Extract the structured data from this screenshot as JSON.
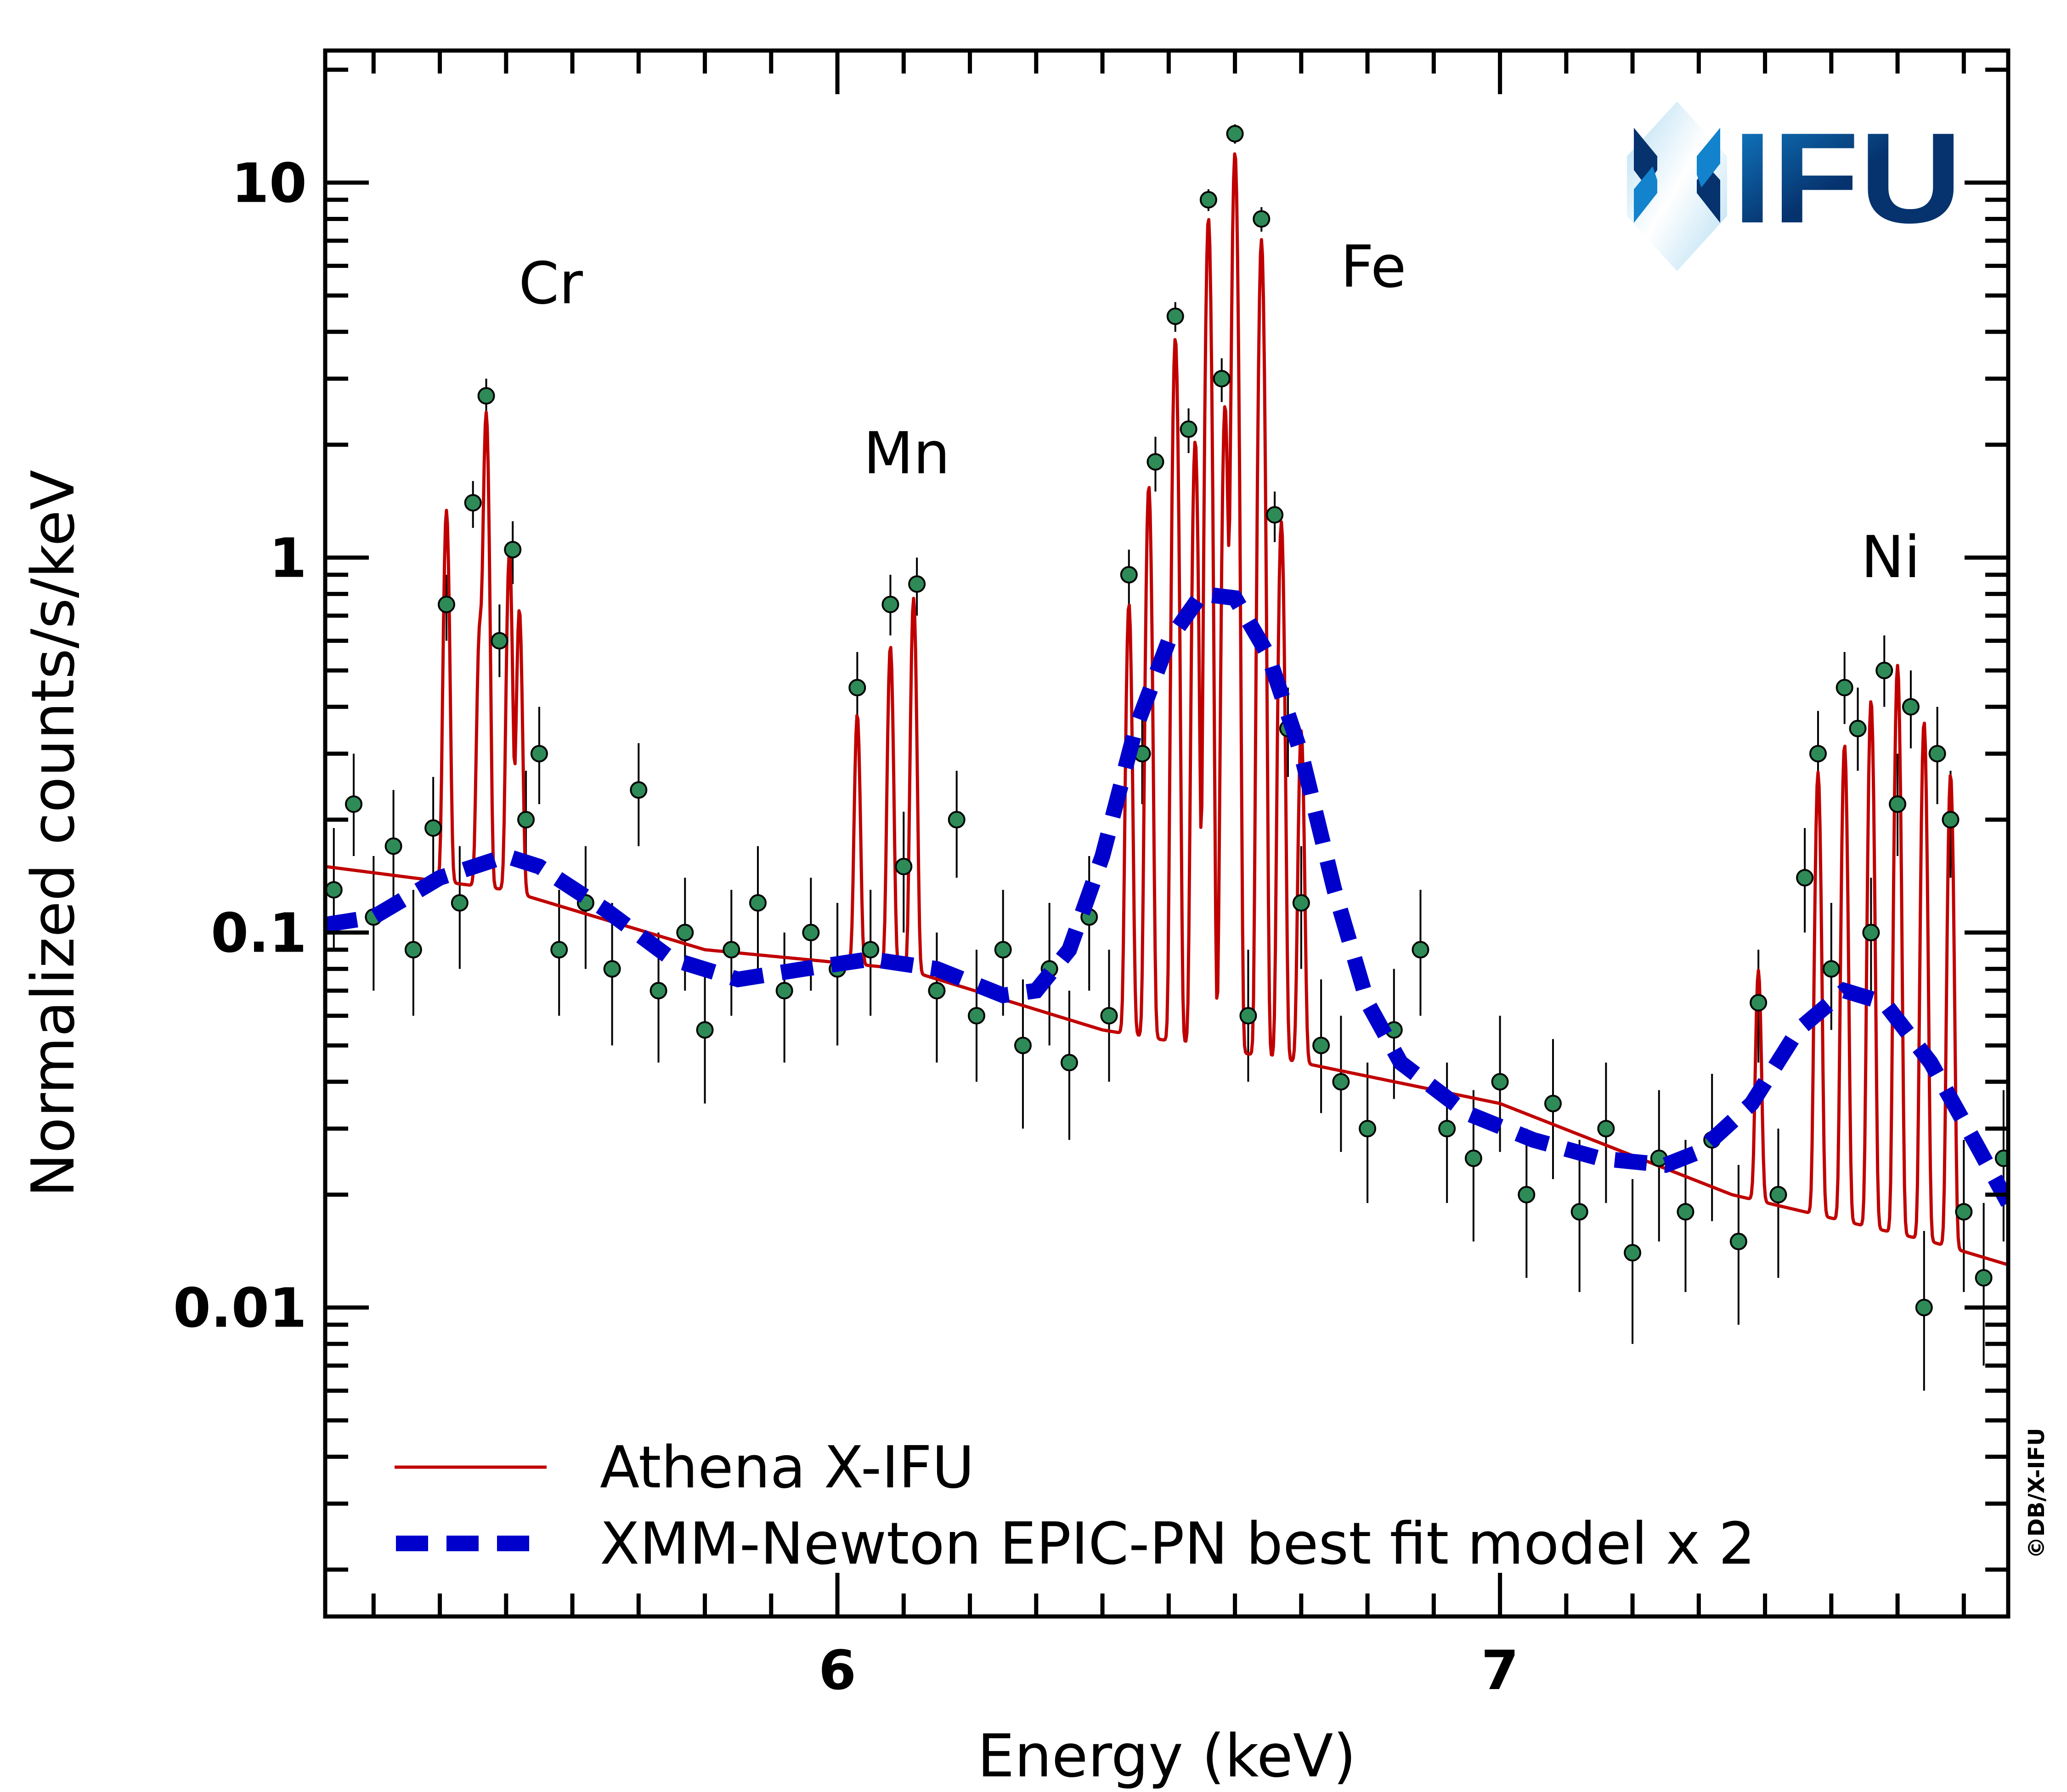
{
  "chart_data": {
    "type": "scatter",
    "xlabel": "Energy (keV)",
    "ylabel": "Normalized counts/s/keV",
    "xlim": [
      5.227,
      7.767
    ],
    "ylim": [
      0.0015,
      22.5
    ],
    "yscale": "log",
    "xticks": [
      {
        "value": 6,
        "label": "6"
      },
      {
        "value": 7,
        "label": "7"
      }
    ],
    "yticks": [
      {
        "value": 0.01,
        "label": "0.01"
      },
      {
        "value": 0.1,
        "label": "0.1"
      },
      {
        "value": 1,
        "label": "1"
      },
      {
        "value": 10,
        "label": "10"
      }
    ],
    "grid": false,
    "legend_placement": "bottom-left",
    "annotations": [
      {
        "text": "Cr",
        "x": 5.5,
        "y": 5.2
      },
      {
        "text": "Mn",
        "x": 6.11,
        "y": 1.9
      },
      {
        "text": "Fe",
        "x": 6.81,
        "y": 5.8
      },
      {
        "text": "Ni",
        "x": 7.59,
        "y": 1.0
      }
    ],
    "series": [
      {
        "name": "Athena X-IFU",
        "kind": "model-line",
        "color": "#c00000",
        "continuum": [
          [
            5.227,
            0.15
          ],
          [
            5.5,
            0.13
          ],
          [
            5.8,
            0.09
          ],
          [
            6.1,
            0.08
          ],
          [
            6.4,
            0.055
          ],
          [
            6.7,
            0.045
          ],
          [
            7.0,
            0.035
          ],
          [
            7.35,
            0.02
          ],
          [
            7.65,
            0.015
          ],
          [
            7.767,
            0.013
          ]
        ],
        "lines": [
          {
            "energy": 5.41,
            "peak": 1.2
          },
          {
            "energy": 5.46,
            "peak": 0.5
          },
          {
            "energy": 5.47,
            "peak": 2.3
          },
          {
            "energy": 5.505,
            "peak": 0.9
          },
          {
            "energy": 5.52,
            "peak": 0.6
          },
          {
            "energy": 6.03,
            "peak": 0.3
          },
          {
            "energy": 6.08,
            "peak": 0.5
          },
          {
            "energy": 6.115,
            "peak": 0.7
          },
          {
            "energy": 6.44,
            "peak": 0.7
          },
          {
            "energy": 6.47,
            "peak": 1.5
          },
          {
            "energy": 6.51,
            "peak": 3.8
          },
          {
            "energy": 6.54,
            "peak": 2.0
          },
          {
            "energy": 6.56,
            "peak": 8.0
          },
          {
            "energy": 6.585,
            "peak": 2.5
          },
          {
            "energy": 6.6,
            "peak": 12.0
          },
          {
            "energy": 6.64,
            "peak": 7.0
          },
          {
            "energy": 6.67,
            "peak": 1.2
          },
          {
            "energy": 6.7,
            "peak": 0.3
          },
          {
            "energy": 7.39,
            "peak": 0.06
          },
          {
            "energy": 7.48,
            "peak": 0.25
          },
          {
            "energy": 7.52,
            "peak": 0.3
          },
          {
            "energy": 7.56,
            "peak": 0.4
          },
          {
            "energy": 7.6,
            "peak": 0.5
          },
          {
            "energy": 7.64,
            "peak": 0.35
          },
          {
            "energy": 7.68,
            "peak": 0.25
          }
        ]
      },
      {
        "name": "XMM-Newton EPIC-PN best fit model x 2",
        "kind": "dashed-line",
        "color": "#0000cc",
        "points": [
          [
            5.227,
            0.105
          ],
          [
            5.3,
            0.11
          ],
          [
            5.4,
            0.14
          ],
          [
            5.5,
            0.16
          ],
          [
            5.55,
            0.15
          ],
          [
            5.65,
            0.115
          ],
          [
            5.75,
            0.085
          ],
          [
            5.85,
            0.075
          ],
          [
            5.95,
            0.08
          ],
          [
            6.05,
            0.085
          ],
          [
            6.15,
            0.08
          ],
          [
            6.25,
            0.068
          ],
          [
            6.3,
            0.07
          ],
          [
            6.35,
            0.09
          ],
          [
            6.4,
            0.16
          ],
          [
            6.45,
            0.35
          ],
          [
            6.5,
            0.6
          ],
          [
            6.55,
            0.8
          ],
          [
            6.6,
            0.78
          ],
          [
            6.65,
            0.55
          ],
          [
            6.7,
            0.3
          ],
          [
            6.75,
            0.13
          ],
          [
            6.8,
            0.065
          ],
          [
            6.85,
            0.045
          ],
          [
            6.95,
            0.033
          ],
          [
            7.05,
            0.028
          ],
          [
            7.15,
            0.025
          ],
          [
            7.25,
            0.024
          ],
          [
            7.3,
            0.026
          ],
          [
            7.38,
            0.035
          ],
          [
            7.45,
            0.055
          ],
          [
            7.52,
            0.07
          ],
          [
            7.58,
            0.065
          ],
          [
            7.65,
            0.045
          ],
          [
            7.72,
            0.027
          ],
          [
            7.767,
            0.019
          ]
        ]
      },
      {
        "kind": "data-points",
        "color": "#2e8b57",
        "columns": [
          "energy",
          "value",
          "err_low",
          "err_high"
        ],
        "points": [
          [
            5.24,
            0.13,
            0.09,
            0.19
          ],
          [
            5.27,
            0.22,
            0.16,
            0.3
          ],
          [
            5.3,
            0.11,
            0.07,
            0.16
          ],
          [
            5.33,
            0.17,
            0.12,
            0.24
          ],
          [
            5.36,
            0.09,
            0.06,
            0.13
          ],
          [
            5.39,
            0.19,
            0.13,
            0.26
          ],
          [
            5.41,
            0.75,
            0.6,
            0.9
          ],
          [
            5.43,
            0.12,
            0.08,
            0.17
          ],
          [
            5.45,
            1.4,
            1.2,
            1.6
          ],
          [
            5.47,
            2.7,
            2.4,
            3.0
          ],
          [
            5.49,
            0.6,
            0.48,
            0.75
          ],
          [
            5.51,
            1.05,
            0.85,
            1.25
          ],
          [
            5.53,
            0.2,
            0.14,
            0.27
          ],
          [
            5.55,
            0.3,
            0.22,
            0.4
          ],
          [
            5.58,
            0.09,
            0.06,
            0.13
          ],
          [
            5.62,
            0.12,
            0.08,
            0.17
          ],
          [
            5.66,
            0.08,
            0.05,
            0.12
          ],
          [
            5.7,
            0.24,
            0.17,
            0.32
          ],
          [
            5.73,
            0.07,
            0.045,
            0.1
          ],
          [
            5.77,
            0.1,
            0.07,
            0.14
          ],
          [
            5.8,
            0.055,
            0.035,
            0.08
          ],
          [
            5.84,
            0.09,
            0.06,
            0.13
          ],
          [
            5.88,
            0.12,
            0.08,
            0.17
          ],
          [
            5.92,
            0.07,
            0.045,
            0.1
          ],
          [
            5.96,
            0.1,
            0.07,
            0.14
          ],
          [
            6.0,
            0.08,
            0.05,
            0.12
          ],
          [
            6.03,
            0.45,
            0.35,
            0.56
          ],
          [
            6.05,
            0.09,
            0.06,
            0.13
          ],
          [
            6.08,
            0.75,
            0.62,
            0.9
          ],
          [
            6.1,
            0.15,
            0.1,
            0.21
          ],
          [
            6.12,
            0.85,
            0.7,
            1.0
          ],
          [
            6.15,
            0.07,
            0.045,
            0.1
          ],
          [
            6.18,
            0.2,
            0.14,
            0.27
          ],
          [
            6.21,
            0.06,
            0.04,
            0.09
          ],
          [
            6.25,
            0.09,
            0.06,
            0.13
          ],
          [
            6.28,
            0.05,
            0.03,
            0.075
          ],
          [
            6.32,
            0.08,
            0.05,
            0.12
          ],
          [
            6.35,
            0.045,
            0.028,
            0.07
          ],
          [
            6.38,
            0.11,
            0.07,
            0.16
          ],
          [
            6.41,
            0.06,
            0.04,
            0.09
          ],
          [
            6.44,
            0.9,
            0.75,
            1.05
          ],
          [
            6.46,
            0.3,
            0.22,
            0.4
          ],
          [
            6.48,
            1.8,
            1.5,
            2.1
          ],
          [
            6.51,
            4.4,
            4.0,
            4.8
          ],
          [
            6.53,
            2.2,
            1.9,
            2.5
          ],
          [
            6.56,
            9.0,
            8.4,
            9.6
          ],
          [
            6.58,
            3.0,
            2.6,
            3.4
          ],
          [
            6.6,
            13.5,
            12.7,
            14.3
          ],
          [
            6.62,
            0.06,
            0.04,
            0.09
          ],
          [
            6.64,
            8.0,
            7.4,
            8.6
          ],
          [
            6.66,
            1.3,
            1.1,
            1.5
          ],
          [
            6.68,
            0.35,
            0.26,
            0.45
          ],
          [
            6.7,
            0.12,
            0.08,
            0.17
          ],
          [
            6.73,
            0.05,
            0.033,
            0.075
          ],
          [
            6.76,
            0.04,
            0.026,
            0.06
          ],
          [
            6.8,
            0.03,
            0.019,
            0.045
          ],
          [
            6.84,
            0.055,
            0.036,
            0.08
          ],
          [
            6.88,
            0.09,
            0.06,
            0.13
          ],
          [
            6.92,
            0.03,
            0.019,
            0.045
          ],
          [
            6.96,
            0.025,
            0.015,
            0.038
          ],
          [
            7.0,
            0.04,
            0.026,
            0.06
          ],
          [
            7.04,
            0.02,
            0.012,
            0.03
          ],
          [
            7.08,
            0.035,
            0.022,
            0.052
          ],
          [
            7.12,
            0.018,
            0.011,
            0.028
          ],
          [
            7.16,
            0.03,
            0.019,
            0.045
          ],
          [
            7.2,
            0.014,
            0.008,
            0.022
          ],
          [
            7.24,
            0.025,
            0.015,
            0.038
          ],
          [
            7.28,
            0.018,
            0.011,
            0.028
          ],
          [
            7.32,
            0.028,
            0.017,
            0.042
          ],
          [
            7.36,
            0.015,
            0.009,
            0.024
          ],
          [
            7.39,
            0.065,
            0.045,
            0.09
          ],
          [
            7.42,
            0.02,
            0.012,
            0.03
          ],
          [
            7.46,
            0.14,
            0.1,
            0.19
          ],
          [
            7.48,
            0.3,
            0.23,
            0.39
          ],
          [
            7.5,
            0.08,
            0.055,
            0.12
          ],
          [
            7.52,
            0.45,
            0.36,
            0.56
          ],
          [
            7.54,
            0.35,
            0.27,
            0.45
          ],
          [
            7.56,
            0.1,
            0.07,
            0.14
          ],
          [
            7.58,
            0.5,
            0.4,
            0.62
          ],
          [
            7.6,
            0.22,
            0.16,
            0.3
          ],
          [
            7.62,
            0.4,
            0.31,
            0.5
          ],
          [
            7.64,
            0.01,
            0.006,
            0.016
          ],
          [
            7.66,
            0.3,
            0.22,
            0.4
          ],
          [
            7.68,
            0.2,
            0.14,
            0.27
          ],
          [
            7.7,
            0.018,
            0.011,
            0.028
          ],
          [
            7.73,
            0.012,
            0.007,
            0.019
          ],
          [
            7.76,
            0.025,
            0.015,
            0.038
          ]
        ]
      }
    ]
  },
  "legend": {
    "items": [
      {
        "label": "Athena X-IFU",
        "color": "#c00000",
        "style": "solid"
      },
      {
        "label": "XMM-Newton EPIC-PN best fit model x 2",
        "color": "#0000cc",
        "style": "dashed"
      }
    ]
  },
  "logo": {
    "text": "IFU",
    "colors": [
      "#06336e",
      "#1283cc",
      "#b3ddf2"
    ]
  },
  "copyright": "©DB/X-IFU"
}
